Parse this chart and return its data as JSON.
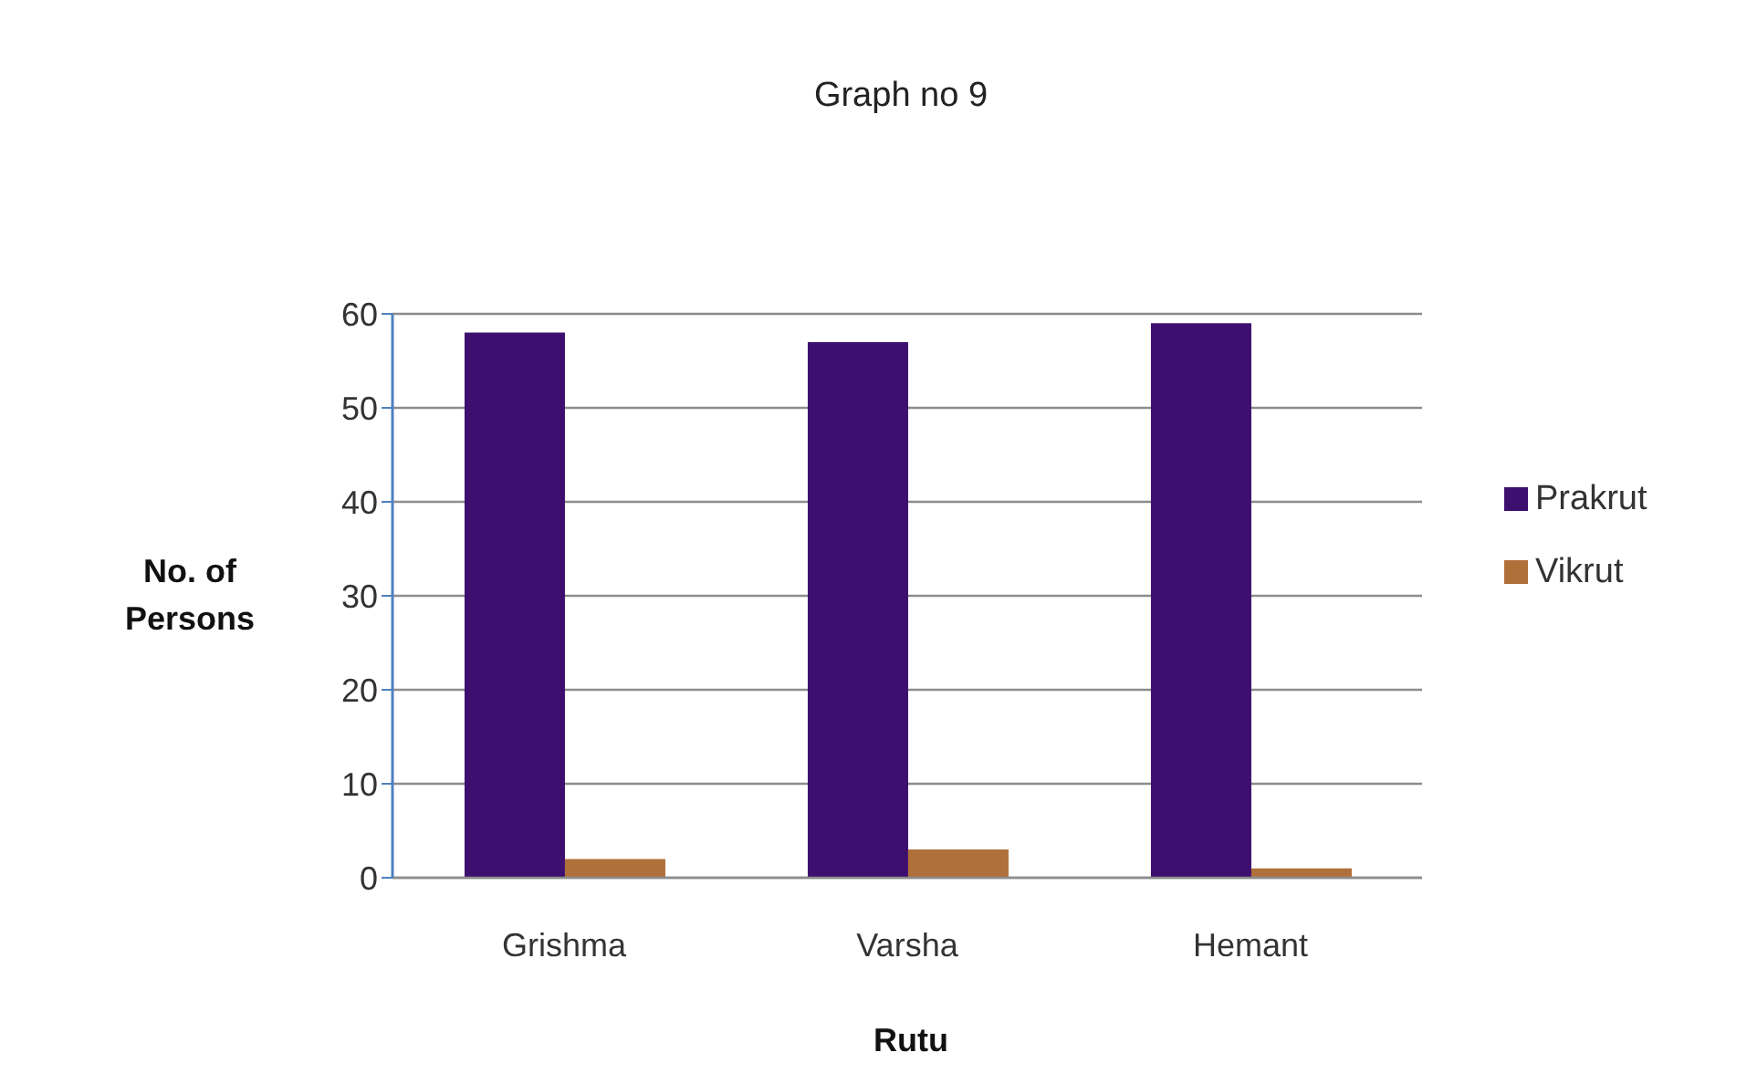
{
  "chart_data": {
    "type": "bar",
    "title": "Graph no 9",
    "xlabel": "Rutu",
    "ylabel": "No. of Persons",
    "categories": [
      "Grishma",
      "Varsha",
      "Hemant"
    ],
    "series": [
      {
        "name": "Prakrut",
        "color": "#3d0f6e",
        "values": [
          58,
          57,
          59
        ]
      },
      {
        "name": "Vikrut",
        "color": "#b0703a",
        "values": [
          2,
          3,
          1
        ]
      }
    ],
    "ylim": [
      0,
      60
    ],
    "yticks": [
      0,
      10,
      20,
      30,
      40,
      50,
      60
    ],
    "grid": "y",
    "legend": "right"
  }
}
